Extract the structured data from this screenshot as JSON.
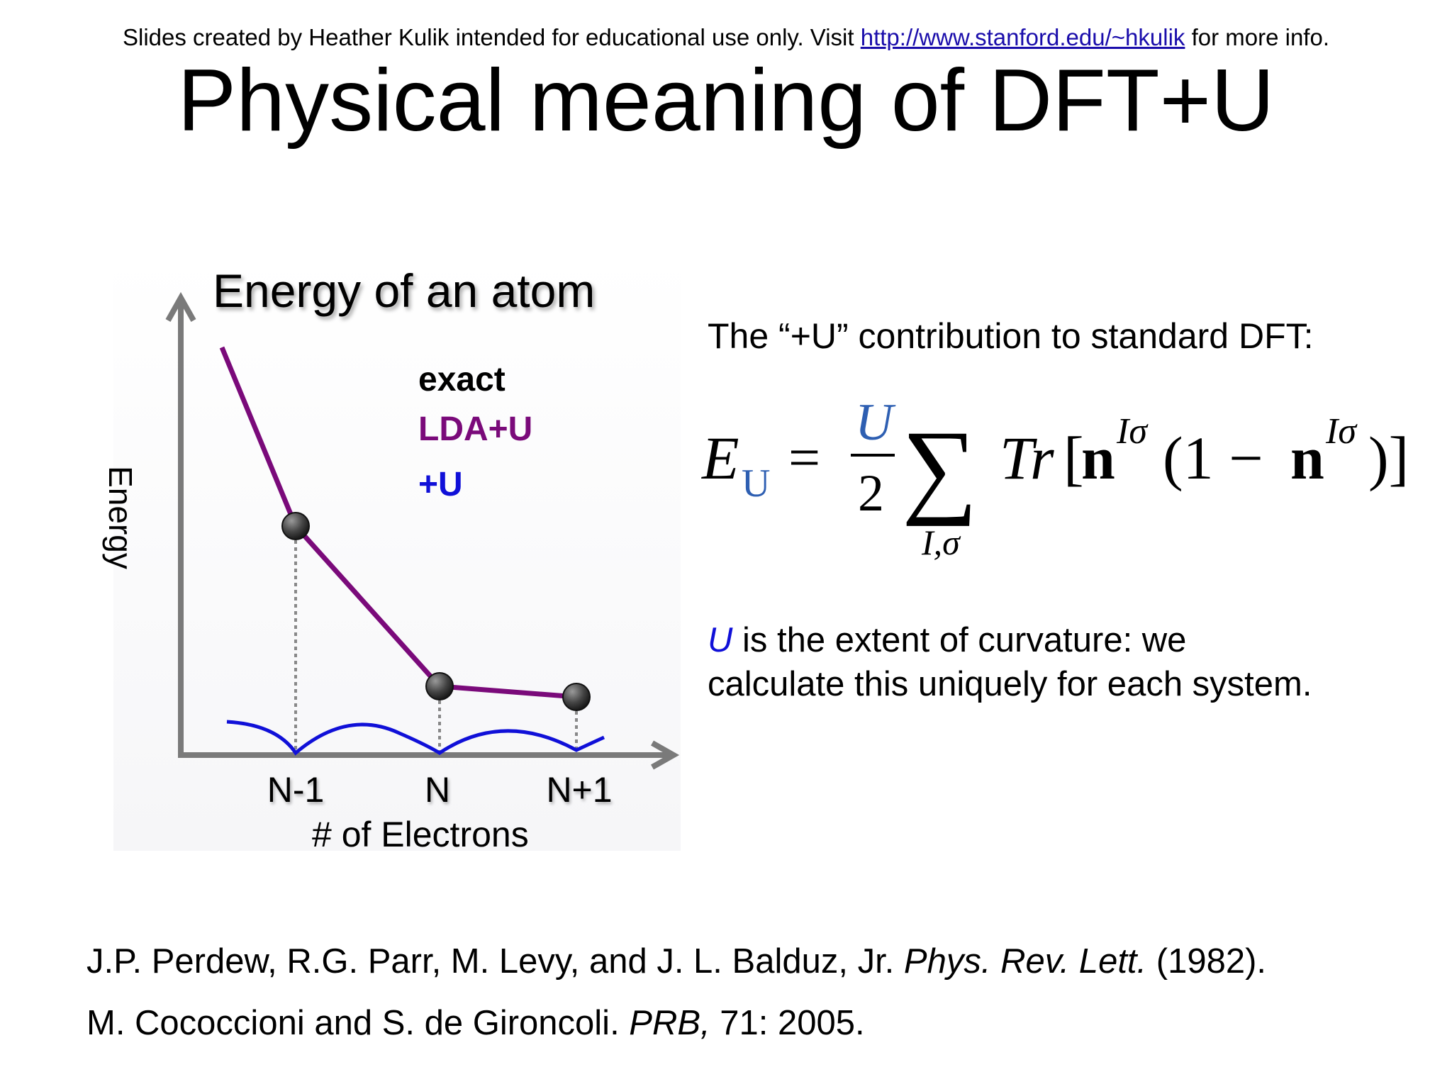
{
  "header": {
    "credit_before": "Slides created by Heather Kulik intended for educational use only. Visit ",
    "credit_link": "http://www.stanford.edu/~hkulik",
    "credit_after": " for more info."
  },
  "slide": {
    "title": "Physical meaning of DFT+U"
  },
  "colors": {
    "lda_u": "#7a0a7a",
    "plus_u": "#1010d8",
    "axis": "#7a7a7a",
    "dots": "#555555"
  },
  "chart_data": {
    "type": "line",
    "title": "Energy of an atom",
    "xlabel": "# of Electrons",
    "ylabel": "Energy",
    "categories": [
      "N-1",
      "N",
      "N+1"
    ],
    "legend": [
      "exact",
      "LDA+U",
      "+U"
    ],
    "legend_placement": "top-right",
    "grid": false
  },
  "formula": {
    "intro": "The “+U” contribution to standard DFT:",
    "E": "E",
    "E_sub": "U",
    "eq": "=",
    "frac_num": "U",
    "frac_den": "2",
    "sigma": "∑",
    "sum_sub": "I,σ",
    "Tr": "Tr",
    "bracket_open": "[",
    "n1": "n",
    "sup1": "Iσ",
    "paren_body": "(1 − ",
    "n2": "n",
    "sup2": "Iσ",
    "close": ")]"
  },
  "description": {
    "u": "U",
    "line1": " is the extent of curvature: we",
    "line2": "calculate this uniquely for each system."
  },
  "references": {
    "ref1_authors": "J.P. Perdew, R.G. Parr, M. Levy, and J. L. Balduz, Jr. ",
    "ref1_journal": "Phys. Rev. Lett.",
    "ref1_year": " (1982).",
    "ref2_authors": "M. Cococcioni and S. de Gironcoli. ",
    "ref2_journal": "PRB,",
    "ref2_rest": " 71: 2005."
  }
}
